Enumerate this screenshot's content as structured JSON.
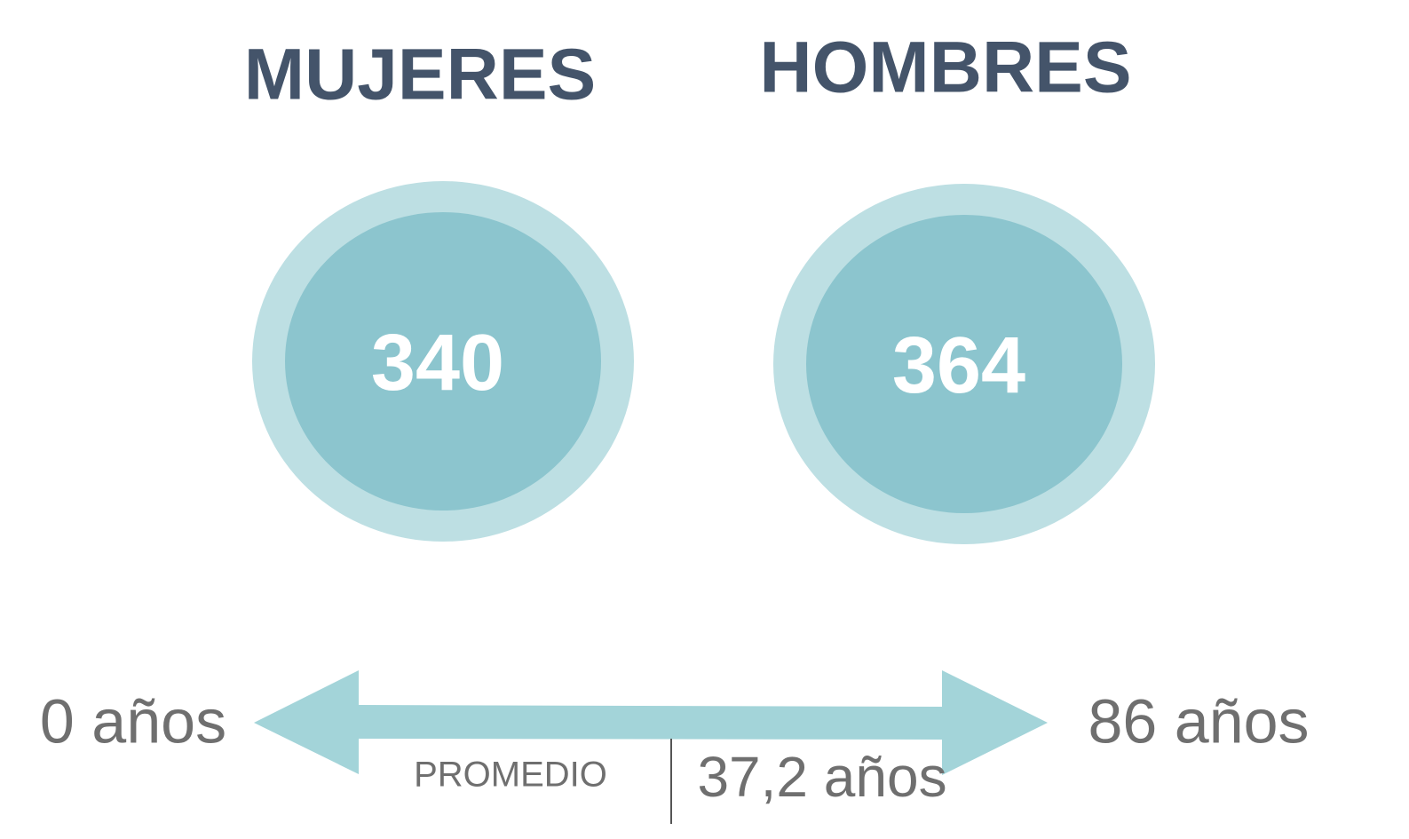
{
  "groups": [
    {
      "label": "MUJERES",
      "count": 340
    },
    {
      "label": "HOMBRES",
      "count": 364
    }
  ],
  "range": {
    "min": "0 años",
    "max": "86 años",
    "average_label": "PROMEDIO",
    "average": "37,2 años"
  }
}
